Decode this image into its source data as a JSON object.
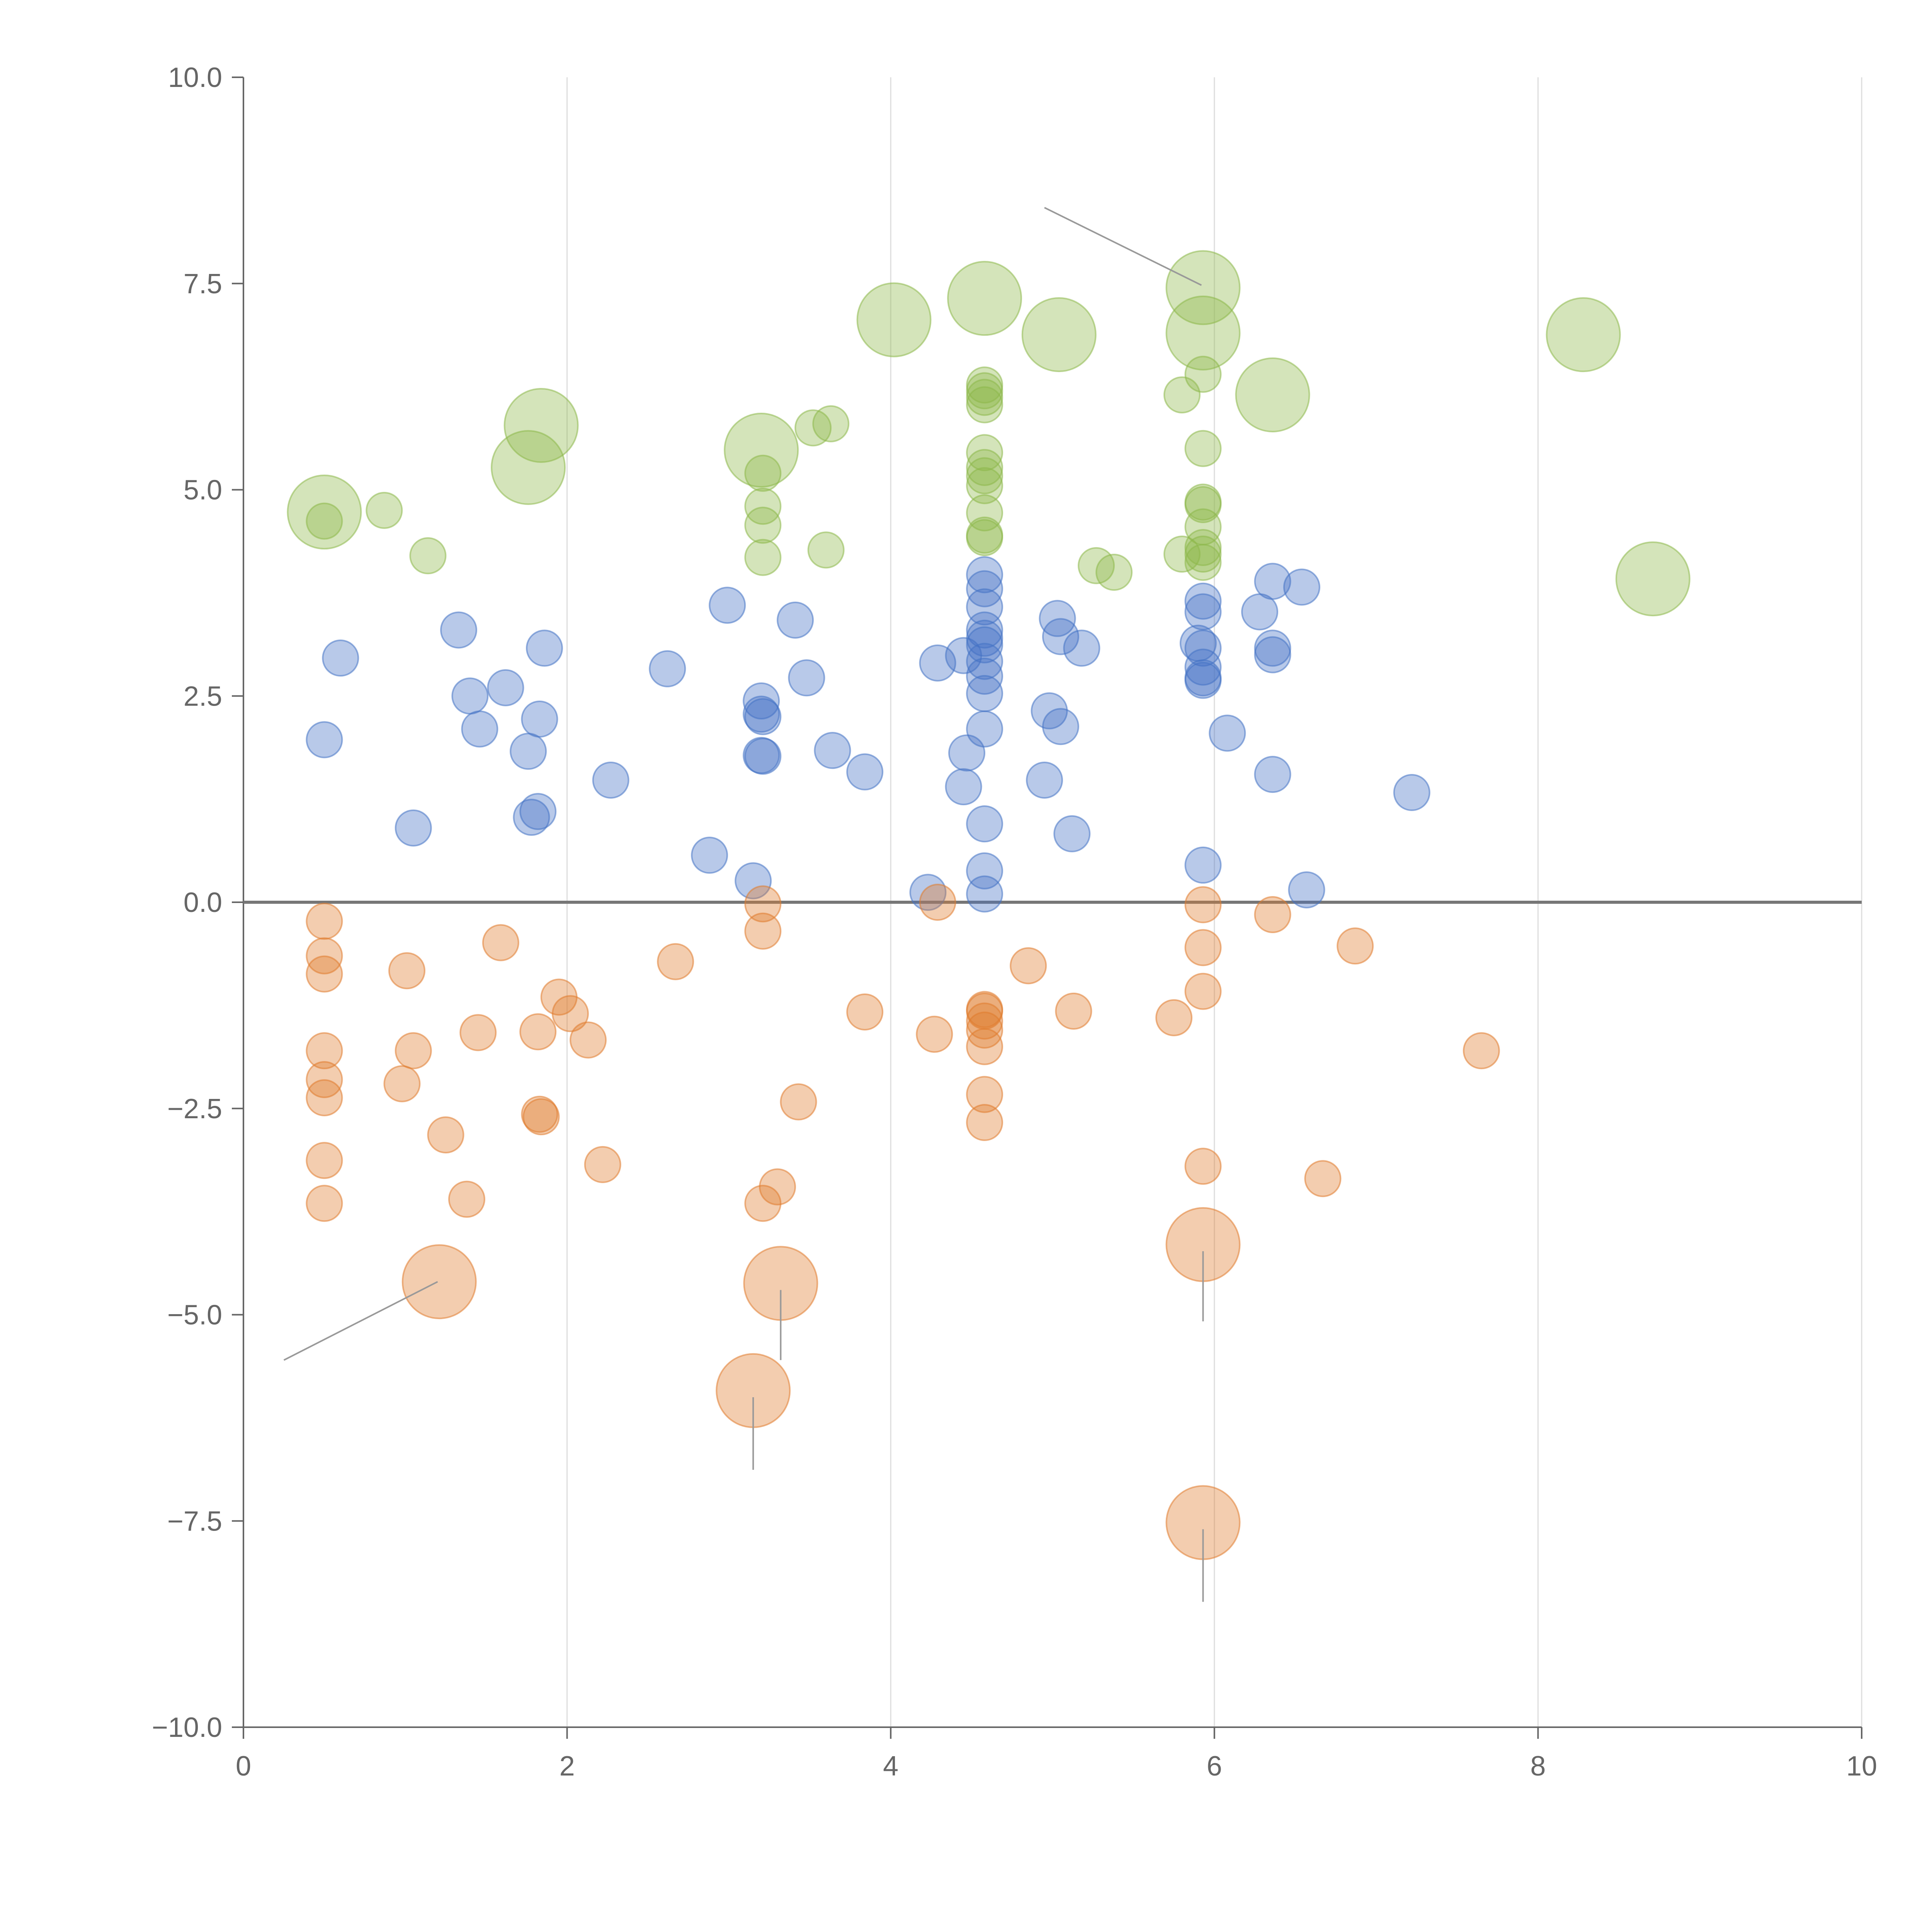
{
  "chart_data": {
    "type": "scatter",
    "title": "",
    "xlabel": "",
    "ylabel": "",
    "xlim": [
      0,
      10
    ],
    "ylim": [
      -10,
      10
    ],
    "x_ticks": [
      "0",
      "2",
      "4",
      "6",
      "8",
      "10"
    ],
    "y_ticks": [
      "10.0",
      "7.5",
      "5.0",
      "2.5",
      "0.0",
      "−2.5",
      "−5.0",
      "−7.5",
      "−10.0"
    ],
    "x_tick_values": [
      0,
      2,
      4,
      6,
      8,
      10
    ],
    "y_tick_values": [
      10,
      7.5,
      5,
      2.5,
      0,
      -2.5,
      -5,
      -7.5,
      -10
    ],
    "grid": "vertical",
    "zero_line": 0,
    "colors": {
      "blue": "#4472C4",
      "orange": "#E07B2E",
      "green": "#8DB84A",
      "axis": "#666666",
      "grid": "#dddddd",
      "zero": "#777777",
      "leader": "#999999"
    },
    "series": [
      {
        "name": "blue",
        "color": "#4472C4",
        "points": [
          [
            0.5,
            1.97,
            1
          ],
          [
            0.6,
            2.96,
            1
          ],
          [
            1.05,
            0.9,
            1
          ],
          [
            1.33,
            3.3,
            1
          ],
          [
            1.4,
            2.5,
            1
          ],
          [
            1.46,
            2.1,
            1
          ],
          [
            1.62,
            2.6,
            1
          ],
          [
            1.76,
            1.83,
            1
          ],
          [
            1.78,
            1.03,
            1
          ],
          [
            1.82,
            1.1,
            1
          ],
          [
            1.83,
            2.22,
            1
          ],
          [
            1.86,
            3.08,
            1
          ],
          [
            2.27,
            1.48,
            1
          ],
          [
            2.62,
            2.83,
            1
          ],
          [
            2.88,
            0.57,
            1
          ],
          [
            2.99,
            3.6,
            1
          ],
          [
            3.15,
            0.26,
            1
          ],
          [
            3.2,
            2.44,
            1
          ],
          [
            3.2,
            2.28,
            1
          ],
          [
            3.21,
            2.25,
            1
          ],
          [
            3.2,
            1.78,
            1
          ],
          [
            3.21,
            1.77,
            1
          ],
          [
            3.41,
            3.42,
            1
          ],
          [
            3.48,
            2.72,
            1
          ],
          [
            3.64,
            1.84,
            1
          ],
          [
            3.84,
            1.58,
            1
          ],
          [
            4.23,
            0.12,
            1
          ],
          [
            4.29,
            2.9,
            1
          ],
          [
            4.45,
            2.99,
            1
          ],
          [
            4.45,
            1.4,
            1
          ],
          [
            4.47,
            1.81,
            1
          ],
          [
            4.58,
            3.97,
            1
          ],
          [
            4.58,
            3.8,
            1
          ],
          [
            4.58,
            3.58,
            1
          ],
          [
            4.58,
            3.3,
            1
          ],
          [
            4.58,
            3.2,
            1
          ],
          [
            4.58,
            3.12,
            1
          ],
          [
            4.58,
            2.92,
            1
          ],
          [
            4.58,
            2.74,
            1
          ],
          [
            4.58,
            2.53,
            1
          ],
          [
            4.58,
            2.1,
            1
          ],
          [
            4.58,
            0.95,
            1
          ],
          [
            4.58,
            0.38,
            1
          ],
          [
            4.58,
            0.1,
            1
          ],
          [
            4.95,
            1.48,
            1
          ],
          [
            4.98,
            2.32,
            1
          ],
          [
            5.03,
            3.44,
            1
          ],
          [
            5.05,
            3.22,
            1
          ],
          [
            5.05,
            2.13,
            1
          ],
          [
            5.12,
            0.83,
            1
          ],
          [
            5.18,
            3.08,
            1
          ],
          [
            5.9,
            3.14,
            1
          ],
          [
            5.93,
            3.65,
            1
          ],
          [
            5.93,
            3.52,
            1
          ],
          [
            5.93,
            3.08,
            1
          ],
          [
            5.93,
            2.85,
            1
          ],
          [
            5.93,
            2.72,
            1
          ],
          [
            5.93,
            2.69,
            1
          ],
          [
            5.93,
            0.45,
            1
          ],
          [
            6.08,
            2.05,
            1
          ],
          [
            6.28,
            3.52,
            1
          ],
          [
            6.36,
            3.89,
            1
          ],
          [
            6.36,
            3.08,
            1
          ],
          [
            6.36,
            3.0,
            1
          ],
          [
            6.36,
            1.55,
            1
          ],
          [
            6.54,
            3.82,
            1
          ],
          [
            6.57,
            0.15,
            1
          ],
          [
            7.22,
            1.33,
            1
          ]
        ]
      },
      {
        "name": "orange",
        "color": "#E07B2E",
        "points": [
          [
            0.5,
            -0.23,
            1
          ],
          [
            0.5,
            -0.65,
            1
          ],
          [
            0.5,
            -0.87,
            1
          ],
          [
            0.5,
            -1.8,
            1
          ],
          [
            0.5,
            -2.15,
            1
          ],
          [
            0.5,
            -2.37,
            1
          ],
          [
            0.5,
            -3.13,
            1
          ],
          [
            0.5,
            -3.65,
            1
          ],
          [
            0.98,
            -2.2,
            1
          ],
          [
            1.01,
            -0.83,
            1
          ],
          [
            1.05,
            -1.8,
            1
          ],
          [
            1.25,
            -2.82,
            1
          ],
          [
            1.38,
            -3.6,
            1
          ],
          [
            1.45,
            -1.58,
            1
          ],
          [
            1.59,
            -0.49,
            1
          ],
          [
            1.82,
            -1.57,
            1
          ],
          [
            1.83,
            -2.57,
            1
          ],
          [
            1.84,
            -2.6,
            1
          ],
          [
            1.95,
            -1.15,
            1
          ],
          [
            2.02,
            -1.35,
            1
          ],
          [
            2.13,
            -1.67,
            1
          ],
          [
            2.22,
            -3.18,
            1
          ],
          [
            2.67,
            -0.72,
            1
          ],
          [
            3.21,
            -0.02,
            1
          ],
          [
            3.21,
            -0.35,
            1
          ],
          [
            3.21,
            -3.65,
            1
          ],
          [
            3.3,
            -3.45,
            1
          ],
          [
            3.43,
            -2.42,
            1
          ],
          [
            3.84,
            -1.33,
            1
          ],
          [
            4.27,
            -1.6,
            1
          ],
          [
            4.29,
            0.0,
            1
          ],
          [
            4.58,
            -1.3,
            1
          ],
          [
            4.58,
            -1.32,
            1
          ],
          [
            4.58,
            -1.44,
            1
          ],
          [
            4.58,
            -1.55,
            1
          ],
          [
            4.58,
            -1.75,
            1
          ],
          [
            4.58,
            -2.33,
            1
          ],
          [
            4.58,
            -2.67,
            1
          ],
          [
            4.85,
            -0.77,
            1
          ],
          [
            5.13,
            -1.32,
            1
          ],
          [
            5.75,
            -1.4,
            1
          ],
          [
            5.93,
            -0.03,
            1
          ],
          [
            5.93,
            -0.55,
            1
          ],
          [
            5.93,
            -1.08,
            1
          ],
          [
            5.93,
            -3.2,
            1
          ],
          [
            6.36,
            -0.15,
            1
          ],
          [
            6.67,
            -3.35,
            1
          ],
          [
            6.87,
            -0.53,
            1
          ],
          [
            7.65,
            -1.8,
            1
          ],
          [
            1.21,
            -4.6,
            2
          ],
          [
            3.32,
            -4.62,
            2
          ],
          [
            3.15,
            -5.92,
            2
          ],
          [
            5.93,
            -4.15,
            2
          ],
          [
            5.93,
            -7.52,
            2
          ]
        ]
      },
      {
        "name": "green",
        "color": "#8DB84A",
        "points": [
          [
            0.5,
            4.62,
            1
          ],
          [
            0.87,
            4.75,
            1
          ],
          [
            1.14,
            4.2,
            1
          ],
          [
            3.21,
            5.2,
            1
          ],
          [
            3.21,
            4.8,
            1
          ],
          [
            3.21,
            4.57,
            1
          ],
          [
            3.21,
            4.18,
            1
          ],
          [
            3.52,
            5.75,
            1
          ],
          [
            3.63,
            5.8,
            1
          ],
          [
            3.6,
            4.27,
            1
          ],
          [
            4.58,
            6.27,
            1
          ],
          [
            4.58,
            6.2,
            1
          ],
          [
            4.58,
            6.12,
            1
          ],
          [
            4.58,
            6.03,
            1
          ],
          [
            4.58,
            5.45,
            1
          ],
          [
            4.58,
            5.27,
            1
          ],
          [
            4.58,
            5.17,
            1
          ],
          [
            4.58,
            5.05,
            1
          ],
          [
            4.58,
            4.72,
            1
          ],
          [
            4.58,
            4.45,
            1
          ],
          [
            4.58,
            4.42,
            1
          ],
          [
            5.27,
            4.08,
            1
          ],
          [
            5.38,
            4.0,
            1
          ],
          [
            5.8,
            6.15,
            1
          ],
          [
            5.8,
            4.22,
            1
          ],
          [
            5.93,
            6.4,
            1
          ],
          [
            5.93,
            5.5,
            1
          ],
          [
            5.93,
            4.85,
            1
          ],
          [
            5.93,
            4.82,
            1
          ],
          [
            5.93,
            4.55,
            1
          ],
          [
            5.93,
            4.3,
            1
          ],
          [
            5.93,
            4.22,
            1
          ],
          [
            5.93,
            4.12,
            1
          ],
          [
            0.5,
            4.73,
            2
          ],
          [
            1.84,
            5.78,
            2
          ],
          [
            1.76,
            5.27,
            2
          ],
          [
            3.2,
            5.48,
            2
          ],
          [
            4.02,
            7.06,
            2
          ],
          [
            4.58,
            7.32,
            2
          ],
          [
            5.04,
            6.88,
            2
          ],
          [
            5.93,
            7.45,
            2
          ],
          [
            5.93,
            6.9,
            2
          ],
          [
            6.36,
            6.15,
            2
          ],
          [
            8.28,
            6.88,
            2
          ],
          [
            8.71,
            3.92,
            2
          ]
        ]
      }
    ],
    "leaders": [
      [
        [
          5.92,
          7.48
        ],
        [
          4.95,
          8.42
        ]
      ],
      [
        [
          1.2,
          -4.6
        ],
        [
          0.25,
          -5.55
        ]
      ],
      [
        [
          3.32,
          -4.7
        ],
        [
          3.32,
          -5.55
        ]
      ],
      [
        [
          3.15,
          -6.0
        ],
        [
          3.15,
          -6.88
        ]
      ],
      [
        [
          5.93,
          -4.23
        ],
        [
          5.93,
          -5.08
        ]
      ],
      [
        [
          5.93,
          -7.6
        ],
        [
          5.93,
          -8.48
        ]
      ]
    ]
  }
}
